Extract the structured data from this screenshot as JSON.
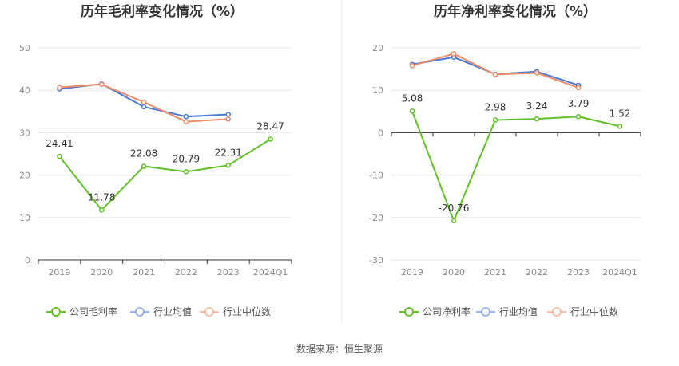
{
  "colors": {
    "company": "#62c027",
    "industry_avg": "#4a7ad6",
    "industry_median": "#f08c69",
    "grid": "#e6e6e6",
    "axis": "#333333",
    "divider": "#e6e6e6"
  },
  "source_text": "数据来源：恒生聚源",
  "chart_data": [
    {
      "type": "line",
      "title": "历年毛利率变化情况（%）",
      "categories": [
        "2019",
        "2020",
        "2021",
        "2022",
        "2023",
        "2024Q1"
      ],
      "ylim": [
        0,
        50
      ],
      "yticks": [
        0,
        10,
        20,
        30,
        40,
        50
      ],
      "series": [
        {
          "key": "company",
          "name": "公司毛利率",
          "values": [
            24.41,
            11.78,
            22.08,
            20.79,
            22.31,
            28.47
          ],
          "labels": [
            "24.41",
            "11.78",
            "22.08",
            "20.79",
            "22.31",
            "28.47"
          ]
        },
        {
          "key": "industry_avg",
          "name": "行业均值",
          "values": [
            40.3,
            41.5,
            36.1,
            33.8,
            34.3,
            null
          ]
        },
        {
          "key": "industry_median",
          "name": "行业中位数",
          "values": [
            40.7,
            41.4,
            37.2,
            32.6,
            33.2,
            null
          ]
        }
      ]
    },
    {
      "type": "line",
      "title": "历年净利率变化情况（%）",
      "categories": [
        "2019",
        "2020",
        "2021",
        "2022",
        "2023",
        "2024Q1"
      ],
      "ylim": [
        -30,
        20
      ],
      "yticks": [
        -30,
        -20,
        -10,
        0,
        10,
        20
      ],
      "series": [
        {
          "key": "company",
          "name": "公司净利率",
          "values": [
            5.08,
            -20.76,
            2.98,
            3.24,
            3.79,
            1.52
          ],
          "labels": [
            "5.08",
            "-20.76",
            "2.98",
            "3.24",
            "3.79",
            "1.52"
          ]
        },
        {
          "key": "industry_avg",
          "name": "行业均值",
          "values": [
            16.1,
            17.8,
            13.8,
            14.4,
            11.2,
            null
          ]
        },
        {
          "key": "industry_median",
          "name": "行业中位数",
          "values": [
            15.8,
            18.6,
            13.7,
            14.1,
            10.6,
            null
          ]
        }
      ]
    }
  ]
}
